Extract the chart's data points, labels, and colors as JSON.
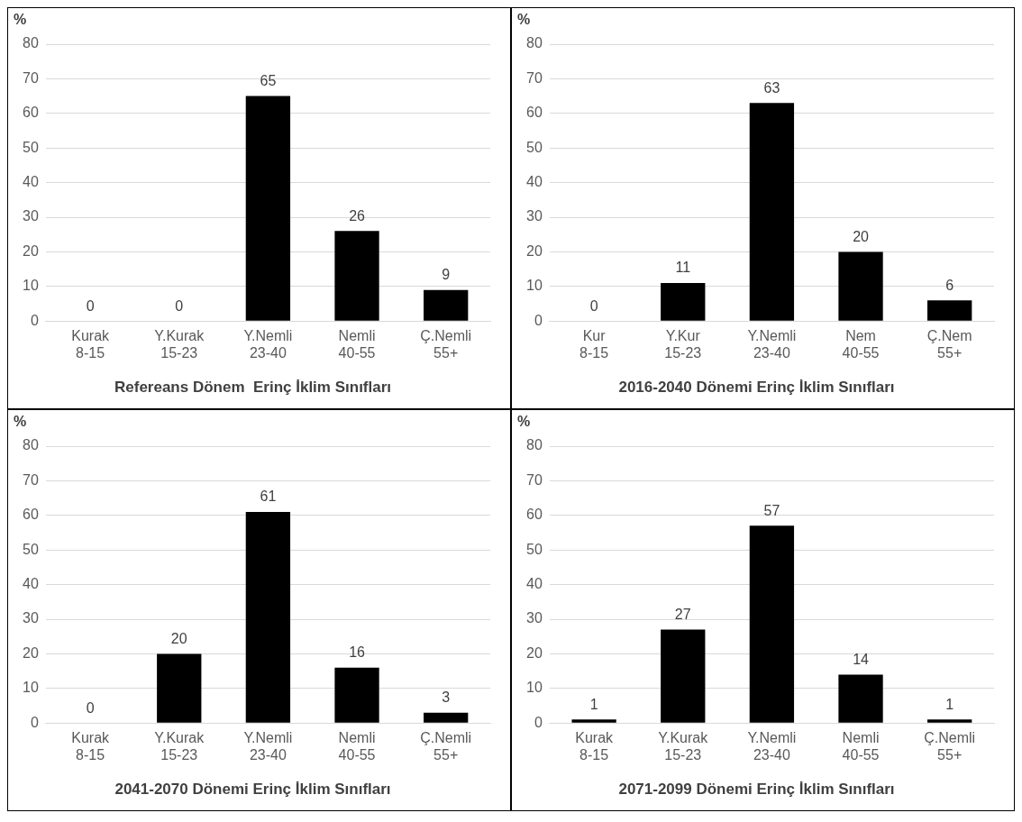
{
  "chart_data": [
    {
      "type": "bar",
      "title": "Refereans Dönem  Erinç İklim Sınıfları",
      "ylabel": "%",
      "categories": [
        "Kurak\n8-15",
        "Y.Kurak\n15-23",
        "Y.Nemli\n23-40",
        "Nemli\n40-55",
        "Ç.Nemli\n55+"
      ],
      "values": [
        0,
        0,
        65,
        26,
        9
      ],
      "color": "#000000",
      "ylim": [
        0,
        80
      ],
      "yticks": [
        0,
        10,
        20,
        30,
        40,
        50,
        60,
        70,
        80
      ],
      "grid": "y",
      "data_labels": true
    },
    {
      "type": "bar",
      "title": "2016-2040 Dönemi Erinç İklim Sınıfları",
      "ylabel": "%",
      "categories": [
        "Kur\n8-15",
        "Y.Kur\n15-23",
        "Y.Nemli\n23-40",
        "Nem\n40-55",
        "Ç.Nem\n55+"
      ],
      "values": [
        0,
        11,
        63,
        20,
        6
      ],
      "color": "#000000",
      "ylim": [
        0,
        80
      ],
      "yticks": [
        0,
        10,
        20,
        30,
        40,
        50,
        60,
        70,
        80
      ],
      "grid": "y",
      "data_labels": true
    },
    {
      "type": "bar",
      "title": "2041-2070 Dönemi Erinç İklim Sınıfları",
      "ylabel": "%",
      "categories": [
        "Kurak\n8-15",
        "Y.Kurak\n15-23",
        "Y.Nemli\n23-40",
        "Nemli\n40-55",
        "Ç.Nemli\n55+"
      ],
      "values": [
        0,
        20,
        61,
        16,
        3
      ],
      "color": "#000000",
      "ylim": [
        0,
        80
      ],
      "yticks": [
        0,
        10,
        20,
        30,
        40,
        50,
        60,
        70,
        80
      ],
      "grid": "y",
      "data_labels": true
    },
    {
      "type": "bar",
      "title": "2071-2099 Dönemi Erinç İklim Sınıfları",
      "ylabel": "%",
      "categories": [
        "Kurak\n8-15",
        "Y.Kurak\n15-23",
        "Y.Nemli\n23-40",
        "Nemli\n40-55",
        "Ç.Nemli\n55+"
      ],
      "values": [
        1,
        27,
        57,
        14,
        1
      ],
      "color": "#000000",
      "ylim": [
        0,
        80
      ],
      "yticks": [
        0,
        10,
        20,
        30,
        40,
        50,
        60,
        70,
        80
      ],
      "grid": "y",
      "data_labels": true
    }
  ]
}
